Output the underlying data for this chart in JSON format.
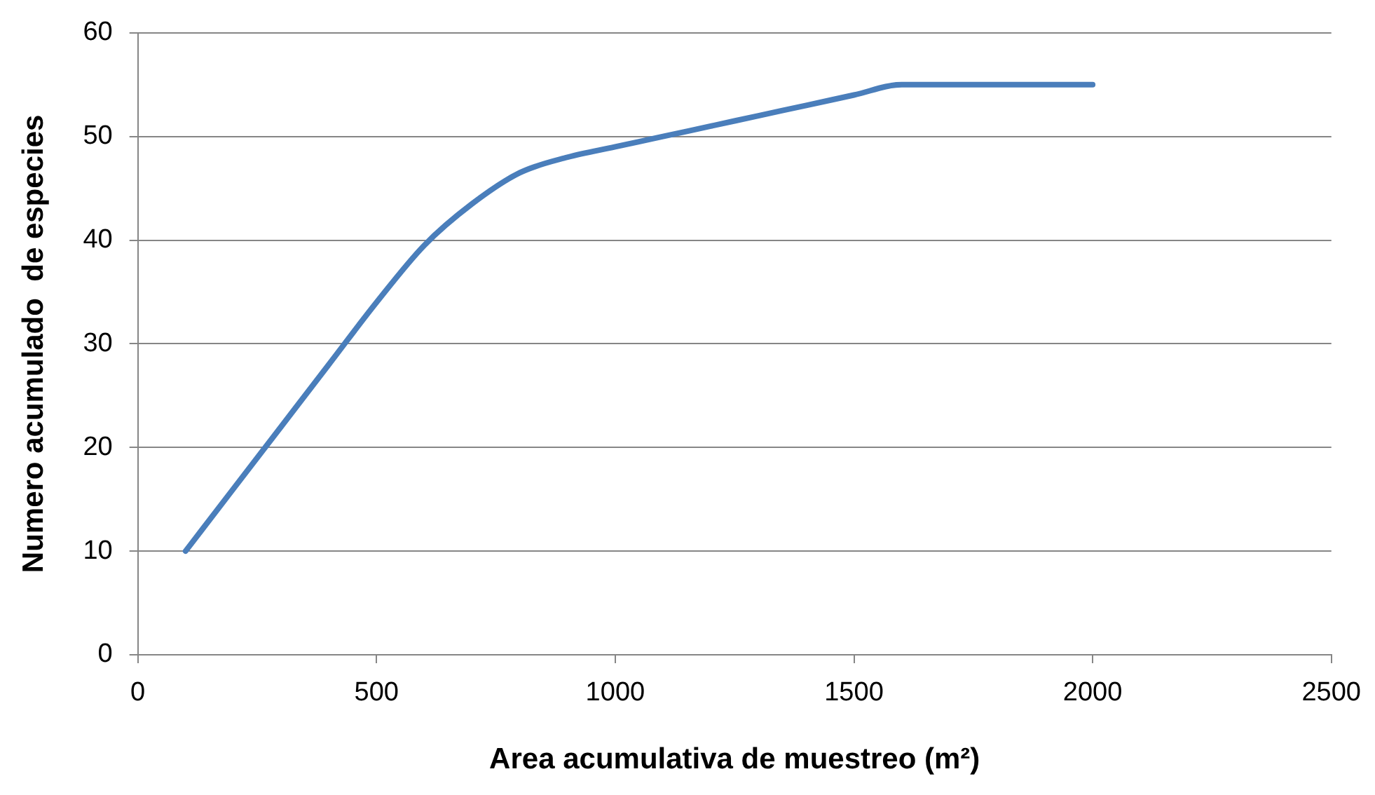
{
  "chart_data": {
    "type": "line",
    "xlabel": "Area acumulativa de muestreo (m²)",
    "ylabel": "Numero acumulado  de especies",
    "x": [
      100,
      200,
      300,
      400,
      500,
      600,
      700,
      800,
      900,
      1000,
      1100,
      1200,
      1300,
      1400,
      1500,
      1600,
      1700,
      1800,
      1900,
      2000
    ],
    "series": [
      {
        "color": "#4a7ebb",
        "values": [
          10,
          16,
          22,
          28,
          34,
          39.5,
          43.5,
          46.5,
          48,
          49,
          50,
          51,
          52,
          53,
          54,
          55,
          55,
          55,
          55,
          55
        ]
      }
    ],
    "xlim": [
      0,
      2500
    ],
    "xticks": [
      0,
      500,
      1000,
      1500,
      2000,
      2500
    ],
    "ylim": [
      0,
      60
    ],
    "yticks": [
      0,
      10,
      20,
      30,
      40,
      50,
      60
    ],
    "grid": "y",
    "legend": false,
    "marker": "none",
    "line_style": "solid"
  }
}
